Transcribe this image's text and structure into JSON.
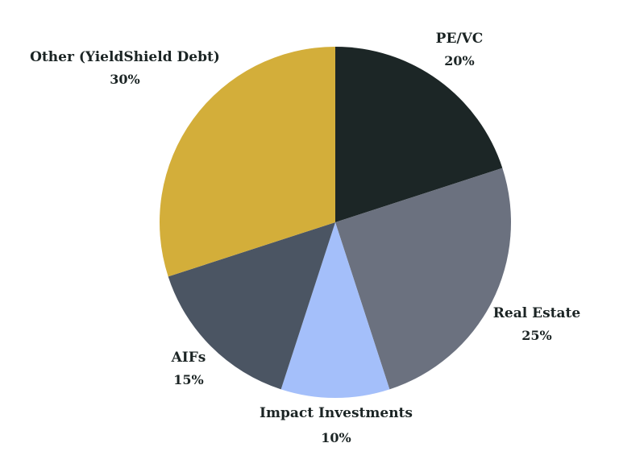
{
  "chart_data": {
    "type": "pie",
    "start_angle_deg": 0,
    "direction": "clockwise",
    "slices": [
      {
        "label": "PE/VC",
        "value": 20,
        "value_label": "20%",
        "color": "#1c2626"
      },
      {
        "label": "Real Estate",
        "value": 25,
        "value_label": "25%",
        "color": "#6b717f"
      },
      {
        "label": "Impact Investments",
        "value": 10,
        "value_label": "10%",
        "color": "#a4bffa"
      },
      {
        "label": "AIFs",
        "value": 15,
        "value_label": "15%",
        "color": "#4b5563"
      },
      {
        "label": "Other (YieldShield Debt)",
        "value": 30,
        "value_label": "30%",
        "color": "#d3ae3a"
      }
    ]
  }
}
